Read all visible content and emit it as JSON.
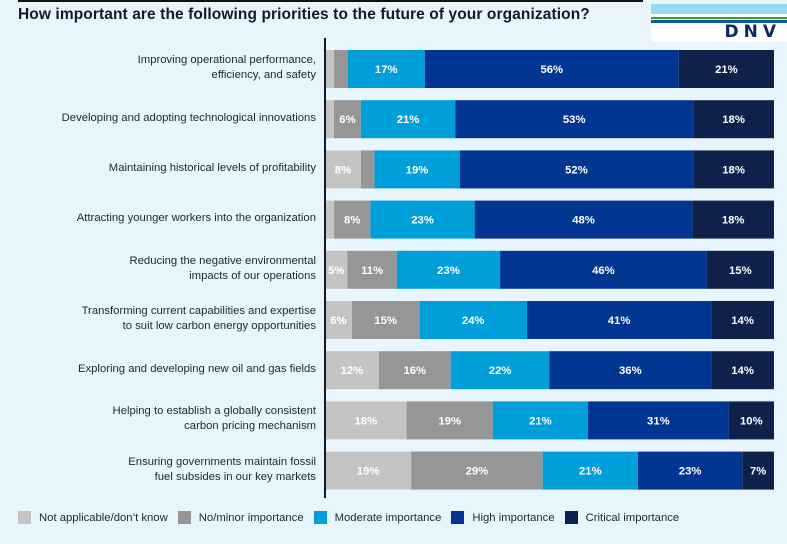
{
  "header": {
    "title": "How important are the following priorities to the future of your organization?",
    "logo_text": "DNV"
  },
  "colors": {
    "not_applicable": "#c4c4c4",
    "no_minor": "#969696",
    "moderate": "#009fd9",
    "high": "#003591",
    "critical": "#0f204b",
    "background": "#e8f5fc"
  },
  "chart_data": {
    "type": "bar",
    "orientation": "horizontal",
    "stacked": "100%",
    "title": "How important are the following priorities to the future of your organization?",
    "xlabel": "",
    "ylabel": "",
    "legend_position": "bottom",
    "grid": false,
    "categories": [
      "Improving operational performance, efficiency, and safety",
      "Developing and adopting technological innovations",
      "Maintaining historical levels of profitability",
      "Attracting younger workers into the organization",
      "Reducing the negative environmental impacts of our operations",
      "Transforming current capabilities and expertise to suit low carbon energy opportunities",
      "Exploring and developing new oil and gas fields",
      "Helping to establish a globally consistent carbon pricing mechanism",
      "Ensuring governments maintain fossil fuel subsides in our key markets"
    ],
    "category_lines": [
      [
        "Improving operational performance,",
        "efficiency, and safety"
      ],
      [
        "Developing and adopting technological innovations"
      ],
      [
        "Maintaining historical levels of profitability"
      ],
      [
        "Attracting younger workers into the organization"
      ],
      [
        "Reducing the negative environmental",
        "impacts of our operations"
      ],
      [
        "Transforming current capabilities and expertise",
        "to suit low carbon energy opportunities"
      ],
      [
        "Exploring and developing new oil and gas fields"
      ],
      [
        "Helping to establish a globally consistent",
        "carbon pricing mechanism"
      ],
      [
        "Ensuring governments maintain fossil",
        "fuel subsides in our key markets"
      ]
    ],
    "series": [
      {
        "name": "Not applicable/don’t know",
        "color_key": "not_applicable",
        "values": [
          2,
          2,
          8,
          2,
          5,
          6,
          12,
          18,
          19
        ],
        "labels": [
          "",
          "",
          "8%",
          "",
          "5%",
          "6%",
          "12%",
          "18%",
          "19%"
        ]
      },
      {
        "name": "No/minor importance",
        "color_key": "no_minor",
        "values": [
          3,
          6,
          3,
          8,
          11,
          15,
          16,
          19,
          29
        ],
        "labels": [
          "",
          "6%",
          "",
          "8%",
          "11%",
          "15%",
          "16%",
          "19%",
          "29%"
        ]
      },
      {
        "name": "Moderate importance",
        "color_key": "moderate",
        "values": [
          17,
          21,
          19,
          23,
          23,
          24,
          22,
          21,
          21
        ],
        "labels": [
          "17%",
          "21%",
          "19%",
          "23%",
          "23%",
          "24%",
          "22%",
          "21%",
          "21%"
        ]
      },
      {
        "name": "High importance",
        "color_key": "high",
        "values": [
          56,
          53,
          52,
          48,
          46,
          41,
          36,
          31,
          23
        ],
        "labels": [
          "56%",
          "53%",
          "52%",
          "48%",
          "46%",
          "41%",
          "36%",
          "31%",
          "23%"
        ]
      },
      {
        "name": "Critical importance",
        "color_key": "critical",
        "values": [
          21,
          18,
          18,
          18,
          15,
          14,
          14,
          10,
          7
        ],
        "labels": [
          "21%",
          "18%",
          "18%",
          "18%",
          "15%",
          "14%",
          "14%",
          "10%",
          "7%"
        ]
      }
    ],
    "xlim": [
      0,
      100
    ]
  },
  "legend": [
    {
      "label": "Not applicable/don’t know",
      "color_key": "not_applicable"
    },
    {
      "label": "No/minor importance",
      "color_key": "no_minor"
    },
    {
      "label": "Moderate importance",
      "color_key": "moderate"
    },
    {
      "label": "High importance",
      "color_key": "high"
    },
    {
      "label": "Critical importance",
      "color_key": "critical"
    }
  ]
}
